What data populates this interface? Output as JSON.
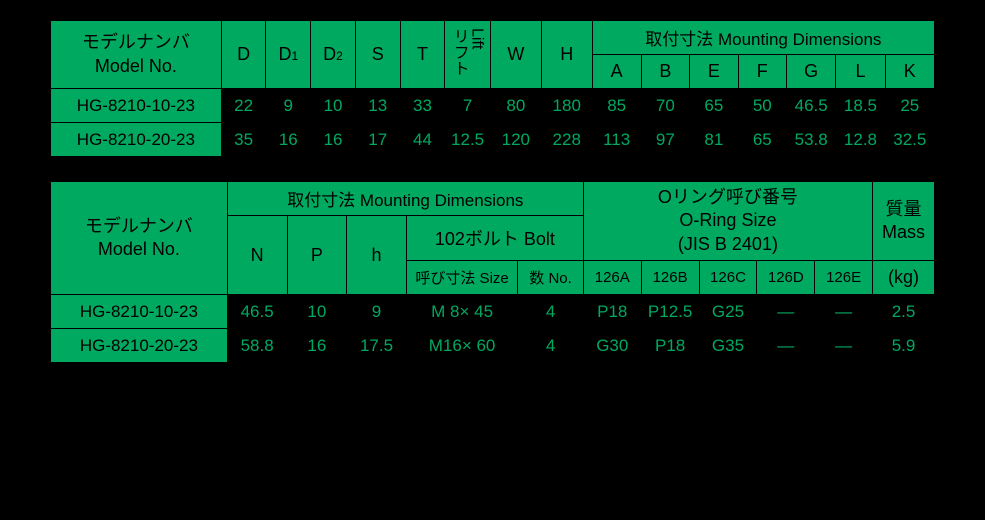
{
  "labels": {
    "model_jp": "モデルナンバ",
    "model_en": "Model No.",
    "lift_jp": "リフト",
    "lift_en": "Lift",
    "mounting_jp": "取付寸法",
    "mounting_en": "Mounting Dimensions",
    "mounting_full": "取付寸法 Mounting Dimensions",
    "bolt": "102ボルト Bolt",
    "bolt_size": "呼び寸法 Size",
    "bolt_no": "数 No.",
    "oring_jp": "Oリング呼び番号",
    "oring_en": "O-Ring Size",
    "oring_std": "(JIS B 2401)",
    "mass_jp": "質量",
    "mass_en": "Mass",
    "mass_unit": "(kg)"
  },
  "t1": {
    "cols": {
      "D": "D",
      "D1a": "D",
      "D1b": "1",
      "D2a": "D",
      "D2b": "2",
      "S": "S",
      "T": "T",
      "W": "W",
      "H": "H",
      "A": "A",
      "B": "B",
      "E": "E",
      "F": "F",
      "G": "G",
      "L": "L",
      "K": "K"
    },
    "rows": [
      {
        "model": "HG-8210-10-23",
        "D": "22",
        "D1": "9",
        "D2": "10",
        "S": "13",
        "T": "33",
        "Lift": "7",
        "W": "80",
        "H": "180",
        "A": "85",
        "B": "70",
        "E": "65",
        "F": "50",
        "G": "46.5",
        "L": "18.5",
        "K": "25"
      },
      {
        "model": "HG-8210-20-23",
        "D": "35",
        "D1": "16",
        "D2": "16",
        "S": "17",
        "T": "44",
        "Lift": "12.5",
        "W": "120",
        "H": "228",
        "A": "113",
        "B": "97",
        "E": "81",
        "F": "65",
        "G": "53.8",
        "L": "12.8",
        "K": "32.5"
      }
    ]
  },
  "t2": {
    "cols": {
      "N": "N",
      "P": "P",
      "h": "h",
      "o126A": "126A",
      "o126B": "126B",
      "o126C": "126C",
      "o126D": "126D",
      "o126E": "126E"
    },
    "rows": [
      {
        "model": "HG-8210-10-23",
        "N": "46.5",
        "P": "10",
        "h": "9",
        "bsize": "M 8×  45",
        "bno": "4",
        "o126A": "P18",
        "o126B": "P12.5",
        "o126C": "G25",
        "o126D": "—",
        "o126E": "—",
        "mass": "2.5"
      },
      {
        "model": "HG-8210-20-23",
        "N": "58.8",
        "P": "16",
        "h": "17.5",
        "bsize": "M16×  60",
        "bno": "4",
        "o126A": "G30",
        "o126B": "P18",
        "o126C": "G35",
        "o126D": "—",
        "o126E": "—",
        "mass": "5.9"
      }
    ]
  }
}
